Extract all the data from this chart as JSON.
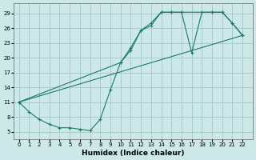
{
  "xlabel": "Humidex (Indice chaleur)",
  "bg_color": "#cce8e8",
  "grid_color": "#aacccc",
  "line_color": "#1a7a6a",
  "xlim": [
    -0.5,
    23.0
  ],
  "ylim": [
    3.5,
    31.0
  ],
  "xticks": [
    0,
    1,
    2,
    3,
    4,
    5,
    6,
    7,
    8,
    9,
    10,
    11,
    12,
    13,
    14,
    15,
    16,
    17,
    18,
    19,
    20,
    21,
    22
  ],
  "yticks": [
    5,
    8,
    11,
    14,
    17,
    20,
    23,
    26,
    29
  ],
  "upper_curve_x": [
    0,
    10,
    11,
    12,
    13,
    14,
    15,
    16,
    19,
    20,
    21,
    22
  ],
  "upper_curve_y": [
    11,
    19,
    22,
    25.5,
    27,
    29.2,
    29.2,
    29.2,
    29.2,
    29.2,
    27,
    24.5
  ],
  "lower_zigzag_x": [
    0,
    1,
    2,
    3,
    4,
    5,
    6,
    7,
    8,
    9,
    10,
    11,
    12,
    13,
    14,
    15,
    16,
    17,
    18,
    19,
    20,
    21,
    22
  ],
  "lower_zigzag_y": [
    11,
    9,
    7.5,
    6.5,
    5.8,
    5.8,
    5.5,
    5.2,
    7.5,
    13.5,
    19.0,
    21.5,
    25.5,
    26.5,
    29.2,
    29.2,
    29.2,
    21,
    29.2,
    29.2,
    29.2,
    27,
    24.5
  ],
  "straight_line_x": [
    0,
    22
  ],
  "straight_line_y": [
    11,
    24.5
  ]
}
